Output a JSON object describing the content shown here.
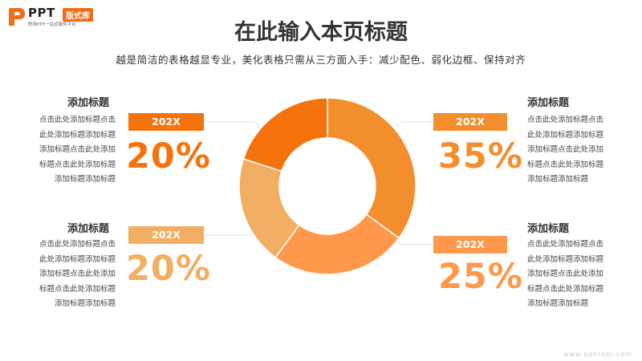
{
  "logo": {
    "brand": "PPT",
    "badge": "版式库",
    "tagline": "职场PPT一站式服务平台"
  },
  "title": "在此输入本页标题",
  "subtitle": "越是简洁的表格越显专业，美化表格只需从三方面入手：减少配色、弱化边框、保持对齐",
  "colors": {
    "s1": "#F28E2B",
    "s2": "#FF984A",
    "s3": "#F2AE62",
    "s4": "#F5720D"
  },
  "blocks": {
    "top_left": {
      "heading": "添加标题",
      "year": "202X",
      "percent": "20%",
      "lines": [
        "点击此处添加标题点击",
        "此处添加标题添加标题",
        "添加标题点击此处添加",
        "标题点击此处添加标题",
        "添加标题添加标题"
      ]
    },
    "bottom_left": {
      "heading": "添加标题",
      "year": "202X",
      "percent": "20%",
      "lines": [
        "点击此处添加标题点击",
        "此处添加标题添加标题",
        "添加标题点击此处添加",
        "标题点击此处添加标题",
        "添加标题添加标题"
      ]
    },
    "top_right": {
      "heading": "添加标题",
      "year": "202X",
      "percent": "35%",
      "lines": [
        "点击此处添加标题点击",
        "此处添加标题添加标题",
        "添加标题点击此处添加",
        "标题点击此处添加标题",
        "添加标题添加标题"
      ]
    },
    "bottom_right": {
      "heading": "添加标题",
      "year": "202X",
      "percent": "25%",
      "lines": [
        "点击此处添加标题点击",
        "此处添加标题添加标题",
        "添加标题点击此处添加",
        "标题点击此处添加标题",
        "添加标题添加标题"
      ]
    }
  },
  "chart_data": {
    "type": "pie",
    "donut": true,
    "values": [
      35,
      25,
      20,
      20
    ],
    "colors": [
      "#F28E2B",
      "#FF984A",
      "#F2AE62",
      "#F5720D"
    ]
  },
  "watermark": "www.pptcool.com"
}
